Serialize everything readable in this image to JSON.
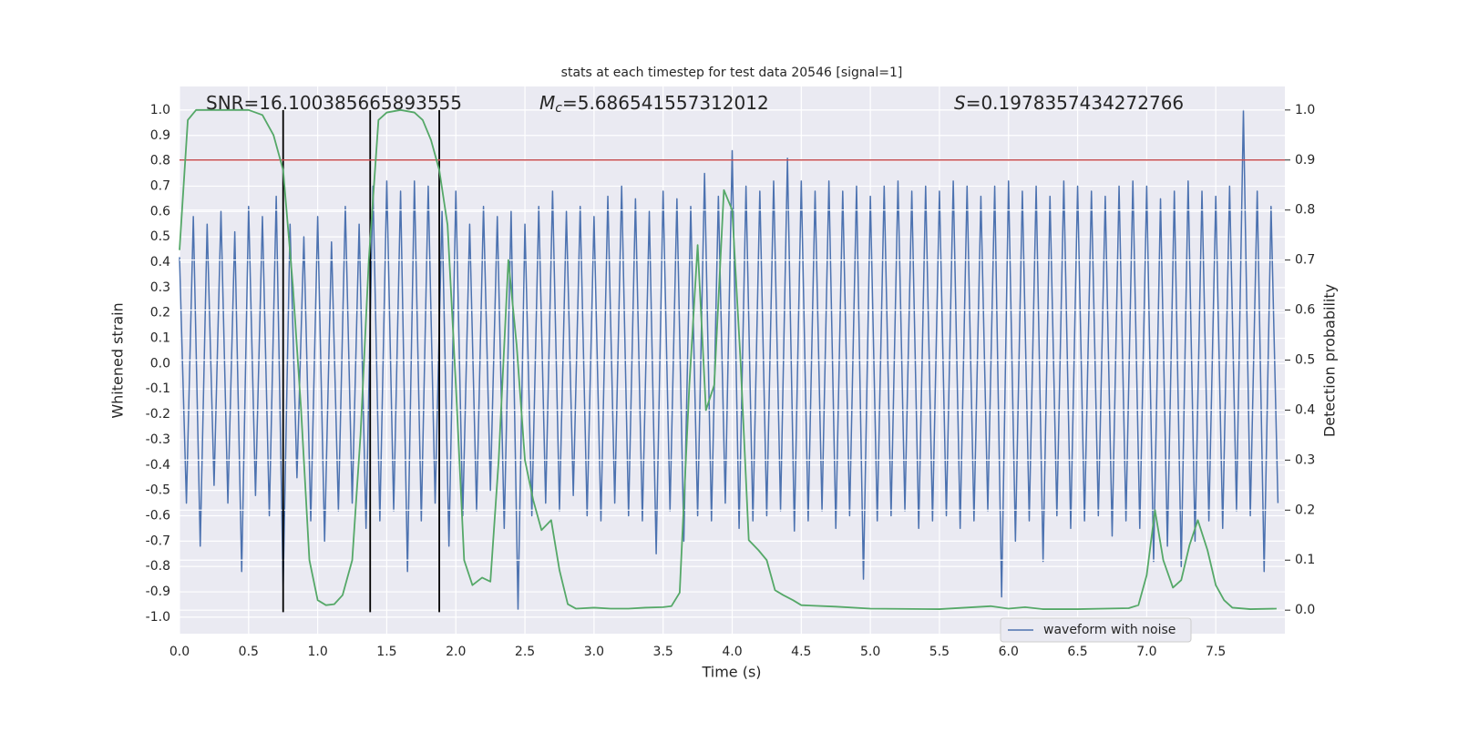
{
  "chart_data": {
    "type": "line",
    "title": "stats at each timestep for test data 20546 [signal=1]",
    "x_label": "Time (s)",
    "y_label": "Whitened strain",
    "y2_label": "Detection probability",
    "annotations": [
      {
        "text": "SNR=16.100385665893555"
      },
      {
        "italic": "M",
        "sub": "c",
        "text": "=5.686541557312012"
      },
      {
        "italic": "S",
        "text": "=0.1978357434272766"
      }
    ],
    "xlim": [
      0,
      8.0
    ],
    "ylim": [
      -1.065,
      1.093
    ],
    "y2lim": [
      -0.047,
      1.047
    ],
    "grid": true,
    "legend": "lower right",
    "xticks": [
      {
        "value": 0,
        "label": "0.0"
      },
      {
        "value": 0.5,
        "label": "0.5"
      },
      {
        "value": 1,
        "label": "1.0"
      },
      {
        "value": 1.5,
        "label": "1.5"
      },
      {
        "value": 2,
        "label": "2.0"
      },
      {
        "value": 2.5,
        "label": "2.5"
      },
      {
        "value": 3,
        "label": "3.0"
      },
      {
        "value": 3.5,
        "label": "3.5"
      },
      {
        "value": 4,
        "label": "4.0"
      },
      {
        "value": 4.5,
        "label": "4.5"
      },
      {
        "value": 5,
        "label": "5.0"
      },
      {
        "value": 5.5,
        "label": "5.5"
      },
      {
        "value": 6,
        "label": "6.0"
      },
      {
        "value": 6.5,
        "label": "6.5"
      },
      {
        "value": 7,
        "label": "7.0"
      },
      {
        "value": 7.5,
        "label": "7.5"
      }
    ],
    "yticks": [
      {
        "value": -1,
        "label": "-1.0"
      },
      {
        "value": -0.9,
        "label": "-0.9"
      },
      {
        "value": -0.8,
        "label": "-0.8"
      },
      {
        "value": -0.7,
        "label": "-0.7"
      },
      {
        "value": -0.6,
        "label": "-0.6"
      },
      {
        "value": -0.5,
        "label": "-0.5"
      },
      {
        "value": -0.4,
        "label": "-0.4"
      },
      {
        "value": -0.3,
        "label": "-0.3"
      },
      {
        "value": -0.2,
        "label": "-0.2"
      },
      {
        "value": -0.1,
        "label": "-0.1"
      },
      {
        "value": 0,
        "label": "0.0"
      },
      {
        "value": 0.1,
        "label": "0.1"
      },
      {
        "value": 0.2,
        "label": "0.2"
      },
      {
        "value": 0.3,
        "label": "0.3"
      },
      {
        "value": 0.4,
        "label": "0.4"
      },
      {
        "value": 0.5,
        "label": "0.5"
      },
      {
        "value": 0.6,
        "label": "0.6"
      },
      {
        "value": 0.7,
        "label": "0.7"
      },
      {
        "value": 0.8,
        "label": "0.8"
      },
      {
        "value": 0.9,
        "label": "0.9"
      },
      {
        "value": 1,
        "label": "1.0"
      }
    ],
    "y2ticks": [
      {
        "value": 0,
        "label": "0.0"
      },
      {
        "value": 0.1,
        "label": "0.1"
      },
      {
        "value": 0.2,
        "label": "0.2"
      },
      {
        "value": 0.3,
        "label": "0.3"
      },
      {
        "value": 0.4,
        "label": "0.4"
      },
      {
        "value": 0.5,
        "label": "0.5"
      },
      {
        "value": 0.6,
        "label": "0.6"
      },
      {
        "value": 0.7,
        "label": "0.7"
      },
      {
        "value": 0.8,
        "label": "0.8"
      },
      {
        "value": 0.9,
        "label": "0.9"
      },
      {
        "value": 1,
        "label": "1.0"
      }
    ],
    "series": [
      {
        "name": "waveform with noise",
        "color": "#4c72b0",
        "x": [
          0,
          0.05,
          0.1,
          0.15,
          0.2,
          0.25,
          0.3,
          0.35,
          0.4,
          0.45,
          0.5,
          0.55,
          0.6,
          0.65,
          0.7,
          0.75,
          0.8,
          0.85,
          0.9,
          0.95,
          1,
          1.05,
          1.1,
          1.15,
          1.2,
          1.25,
          1.3,
          1.35,
          1.4,
          1.45,
          1.5,
          1.55,
          1.6,
          1.65,
          1.7,
          1.75,
          1.8,
          1.85,
          1.9,
          1.95,
          2,
          2.05,
          2.1,
          2.15,
          2.2,
          2.25,
          2.3,
          2.35,
          2.4,
          2.45,
          2.5,
          2.55,
          2.6,
          2.65,
          2.7,
          2.75,
          2.8,
          2.85,
          2.9,
          2.95,
          3,
          3.05,
          3.1,
          3.15,
          3.2,
          3.25,
          3.3,
          3.35,
          3.4,
          3.45,
          3.5,
          3.55,
          3.6,
          3.65,
          3.7,
          3.75,
          3.8,
          3.85,
          3.9,
          3.95,
          4,
          4.05,
          4.1,
          4.15,
          4.2,
          4.25,
          4.3,
          4.35,
          4.4,
          4.45,
          4.5,
          4.55,
          4.6,
          4.65,
          4.7,
          4.75,
          4.8,
          4.85,
          4.9,
          4.95,
          5,
          5.05,
          5.1,
          5.15,
          5.2,
          5.25,
          5.3,
          5.35,
          5.4,
          5.45,
          5.5,
          5.55,
          5.6,
          5.65,
          5.7,
          5.75,
          5.8,
          5.85,
          5.9,
          5.95,
          6,
          6.05,
          6.1,
          6.15,
          6.2,
          6.25,
          6.3,
          6.35,
          6.4,
          6.45,
          6.5,
          6.55,
          6.6,
          6.65,
          6.7,
          6.75,
          6.8,
          6.85,
          6.9,
          6.95,
          7,
          7.05,
          7.1,
          7.15,
          7.2,
          7.25,
          7.3,
          7.35,
          7.4,
          7.45,
          7.5,
          7.55,
          7.6,
          7.65,
          7.7,
          7.75,
          7.8,
          7.85,
          7.9,
          7.95
        ],
        "values": [
          0.42,
          -0.55,
          0.58,
          -0.72,
          0.55,
          -0.48,
          0.6,
          -0.55,
          0.52,
          -0.82,
          0.62,
          -0.52,
          0.58,
          -0.6,
          0.66,
          -0.88,
          0.55,
          -0.45,
          0.5,
          -0.62,
          0.58,
          -0.7,
          0.48,
          -0.58,
          0.62,
          -0.55,
          0.55,
          -0.65,
          0.7,
          -0.62,
          0.72,
          -0.58,
          0.68,
          -0.82,
          0.72,
          -0.62,
          0.7,
          -0.55,
          0.6,
          -0.72,
          0.68,
          -0.6,
          0.55,
          -0.58,
          0.62,
          -0.5,
          0.58,
          -0.65,
          0.6,
          -0.97,
          0.55,
          -0.6,
          0.62,
          -0.55,
          0.68,
          -0.58,
          0.6,
          -0.52,
          0.62,
          -0.6,
          0.58,
          -0.62,
          0.66,
          -0.55,
          0.7,
          -0.6,
          0.65,
          -0.62,
          0.6,
          -0.75,
          0.68,
          -0.58,
          0.65,
          -0.7,
          0.62,
          -0.6,
          0.75,
          -0.62,
          0.66,
          -0.55,
          0.84,
          -0.65,
          0.7,
          -0.62,
          0.68,
          -0.6,
          0.72,
          -0.58,
          0.81,
          -0.66,
          0.72,
          -0.62,
          0.68,
          -0.58,
          0.72,
          -0.65,
          0.68,
          -0.6,
          0.7,
          -0.85,
          0.66,
          -0.62,
          0.7,
          -0.6,
          0.72,
          -0.58,
          0.68,
          -0.65,
          0.7,
          -0.62,
          0.68,
          -0.6,
          0.72,
          -0.65,
          0.7,
          -0.62,
          0.66,
          -0.58,
          0.7,
          -0.92,
          0.72,
          -0.7,
          0.68,
          -0.62,
          0.7,
          -0.78,
          0.66,
          -0.6,
          0.72,
          -0.65,
          0.7,
          -0.62,
          0.68,
          -0.6,
          0.66,
          -0.68,
          0.7,
          -0.62,
          0.72,
          -0.65,
          0.7,
          -0.78,
          0.65,
          -0.72,
          0.68,
          -0.8,
          0.72,
          -0.7,
          0.68,
          -0.62,
          0.66,
          -0.65,
          0.7,
          -0.58,
          1.0,
          -0.6,
          0.68,
          -0.82,
          0.62,
          -0.55
        ]
      },
      {
        "color": "#55a868",
        "axis": "y2",
        "x": [
          0,
          0.06,
          0.12,
          0.5,
          0.6,
          0.68,
          0.75,
          0.82,
          0.88,
          0.94,
          1,
          1.06,
          1.12,
          1.18,
          1.25,
          1.31,
          1.37,
          1.44,
          1.5,
          1.6,
          1.7,
          1.76,
          1.82,
          1.88,
          1.94,
          2,
          2.06,
          2.12,
          2.19,
          2.25,
          2.31,
          2.38,
          2.44,
          2.5,
          2.56,
          2.62,
          2.69,
          2.75,
          2.81,
          2.87,
          3,
          3.12,
          3.25,
          3.37,
          3.5,
          3.56,
          3.62,
          3.69,
          3.75,
          3.81,
          3.87,
          3.94,
          4,
          4.06,
          4.12,
          4.19,
          4.25,
          4.31,
          4.37,
          4.44,
          4.5,
          4.75,
          5,
          5.5,
          5.87,
          6,
          6.12,
          6.25,
          6.5,
          6.87,
          6.94,
          7,
          7.06,
          7.12,
          7.19,
          7.25,
          7.31,
          7.37,
          7.44,
          7.5,
          7.56,
          7.62,
          7.75,
          7.94
        ],
        "values": [
          0.72,
          0.98,
          1.0,
          1.0,
          0.99,
          0.95,
          0.88,
          0.65,
          0.4,
          0.1,
          0.02,
          0.01,
          0.012,
          0.03,
          0.1,
          0.35,
          0.7,
          0.98,
          0.995,
          1.0,
          0.995,
          0.98,
          0.94,
          0.88,
          0.77,
          0.45,
          0.1,
          0.05,
          0.065,
          0.057,
          0.3,
          0.7,
          0.53,
          0.3,
          0.22,
          0.16,
          0.18,
          0.08,
          0.012,
          0.003,
          0.005,
          0.003,
          0.003,
          0.005,
          0.006,
          0.008,
          0.035,
          0.45,
          0.73,
          0.4,
          0.45,
          0.84,
          0.8,
          0.5,
          0.14,
          0.12,
          0.1,
          0.04,
          0.03,
          0.02,
          0.01,
          0.007,
          0.003,
          0.002,
          0.008,
          0.003,
          0.006,
          0.002,
          0.002,
          0.004,
          0.01,
          0.07,
          0.2,
          0.1,
          0.045,
          0.06,
          0.13,
          0.18,
          0.12,
          0.05,
          0.02,
          0.005,
          0.002,
          0.003
        ]
      }
    ],
    "threshold": {
      "value": 0.9,
      "axis": "y2",
      "color": "#c44e52"
    },
    "vlines": {
      "x": [
        0.75,
        1.38,
        1.88
      ],
      "ymin": -0.98,
      "ymax": 1.0,
      "color": "#000000"
    }
  }
}
